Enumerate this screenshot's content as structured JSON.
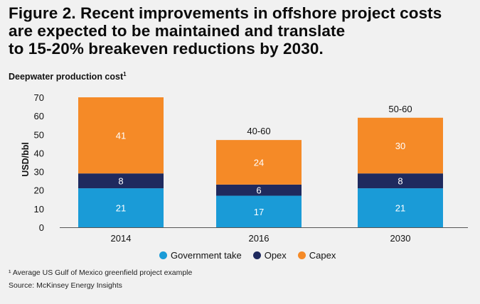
{
  "title_lines": [
    "Figure 2. Recent improvements in offshore project costs",
    "are expected to be maintained and translate",
    "to 15-20% breakeven reductions by 2030."
  ],
  "subtitle": "Deepwater production cost",
  "subtitle_sup": "1",
  "footnote": "¹ Average US Gulf of Mexico greenfield project example",
  "source": "Source: McKinsey Energy Insights",
  "colors": {
    "government": "#1a9bd7",
    "opex": "#1f2a5e",
    "capex": "#f58a27"
  },
  "chart_data": {
    "type": "bar",
    "stacked": true,
    "categories": [
      "2014",
      "2016",
      "2030"
    ],
    "series": [
      {
        "name": "Government take",
        "values": [
          21,
          17,
          21
        ],
        "color": "#1a9bd7"
      },
      {
        "name": "Opex",
        "values": [
          8,
          6,
          8
        ],
        "color": "#1f2a5e"
      },
      {
        "name": "Capex",
        "values": [
          41,
          24,
          30
        ],
        "color": "#f58a27"
      }
    ],
    "range_labels": [
      "",
      "40-60",
      "50-60"
    ],
    "ylabel": "USD/bbl",
    "ylim": [
      0,
      70
    ],
    "yticks": [
      0,
      10,
      20,
      30,
      40,
      50,
      60,
      70
    ],
    "legend_position": "bottom-center"
  }
}
